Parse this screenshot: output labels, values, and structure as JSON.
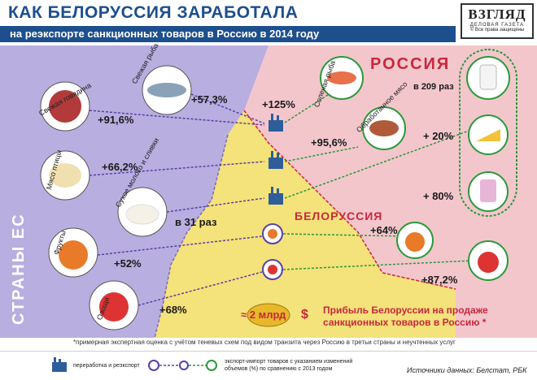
{
  "header": {
    "title": "КАК БЕЛОРУССИЯ ЗАРАБОТАЛА",
    "subtitle": "на реэкспорте санкционных товаров в Россию в 2014 году"
  },
  "logo": {
    "name": "ВЗГЛЯД",
    "tagline": "ДЕЛОВАЯ ГАЗЕТА",
    "copyright": "© Все права защищены"
  },
  "regions": {
    "eu": "СТРАНЫ ЕС",
    "belarus": "БЕЛОРУССИЯ",
    "russia": "РОССИЯ"
  },
  "eu_products": [
    {
      "label": "Свежая говядина",
      "value": "+91,6%"
    },
    {
      "label": "Свежая рыба",
      "value": "+57,3%"
    },
    {
      "label": "Мясо птицы",
      "value": "+66,2%"
    },
    {
      "label": "Сухое молоко и сливки",
      "value": "в 31 раз"
    },
    {
      "label": "Фрукты",
      "value": "+52%"
    },
    {
      "label": "Овощи",
      "value": "+68%"
    }
  ],
  "russia_products": [
    {
      "label": "Соленая рыба",
      "value": "+125%"
    },
    {
      "label": "Обработанное мясо",
      "value": "+95,6%"
    },
    {
      "label": "",
      "value": "в 209 раз"
    },
    {
      "label": "",
      "value": "+ 20%"
    },
    {
      "label": "",
      "value": "+ 80%"
    },
    {
      "label": "",
      "value": "+64%"
    },
    {
      "label": "",
      "value": "+87,2%"
    }
  ],
  "profit": {
    "amount": "≈ 2 млрд",
    "currency": "$",
    "text_line1": "Прибыль Белоруссии на продаже",
    "text_line2": "санкционных  товаров в Россию *"
  },
  "footnote": "*примерная экспертная оценка с учётом теневых схем под видом транзита через Россию в третьи страны и неучтенных услуг",
  "legend": {
    "processing": "переработка и реэкспорт",
    "arrows_line1": "экспорт-импорт товаров с указанием изменений",
    "arrows_line2": "объемов (%) по сравнению с 2013 годом"
  },
  "sources": "Источники данных: Белстат, РБК",
  "colors": {
    "title_blue": "#1d4f8c",
    "eu_bg": "#b9aee0",
    "belarus_bg": "#f4e27a",
    "russia_bg": "#f3c6cc",
    "accent_red": "#c8283c",
    "arrow_green": "#2a9a3a",
    "arrow_purple": "#5a3fa6",
    "factory_blue": "#2f5d9a"
  }
}
